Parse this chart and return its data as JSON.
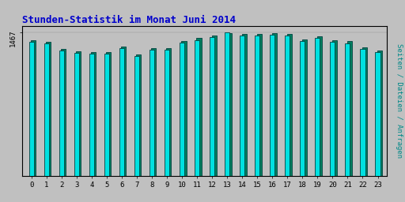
{
  "title": "Stunden-Statistik im Monat Juni 2014",
  "title_color": "#0000cc",
  "title_fontsize": 9,
  "ylabel": "Seiten / Dateien / Anfragen",
  "ylabel_color": "#008888",
  "ylabel_fontsize": 6.5,
  "ytick_label": "1467",
  "background_color": "#c0c0c0",
  "plot_bg_color": "#c0c0c0",
  "bar_color1": "#00e0e0",
  "bar_color2": "#008060",
  "bar_edge_color": "#004040",
  "hours": [
    0,
    1,
    2,
    3,
    4,
    5,
    6,
    7,
    8,
    9,
    10,
    11,
    12,
    13,
    14,
    15,
    16,
    17,
    18,
    19,
    20,
    21,
    22,
    23
  ],
  "values1": [
    1370,
    1355,
    1280,
    1255,
    1250,
    1248,
    1308,
    1225,
    1290,
    1292,
    1365,
    1390,
    1418,
    1467,
    1432,
    1438,
    1442,
    1438,
    1375,
    1408,
    1368,
    1358,
    1300,
    1268
  ],
  "values2": [
    1388,
    1372,
    1300,
    1272,
    1268,
    1265,
    1325,
    1242,
    1308,
    1310,
    1382,
    1408,
    1435,
    1460,
    1448,
    1455,
    1458,
    1455,
    1392,
    1425,
    1385,
    1375,
    1318,
    1285
  ],
  "xlim": [
    -0.6,
    23.6
  ],
  "ylim": [
    0,
    1530
  ],
  "figsize": [
    5.12,
    2.56
  ],
  "dpi": 100,
  "border_color": "#000000"
}
